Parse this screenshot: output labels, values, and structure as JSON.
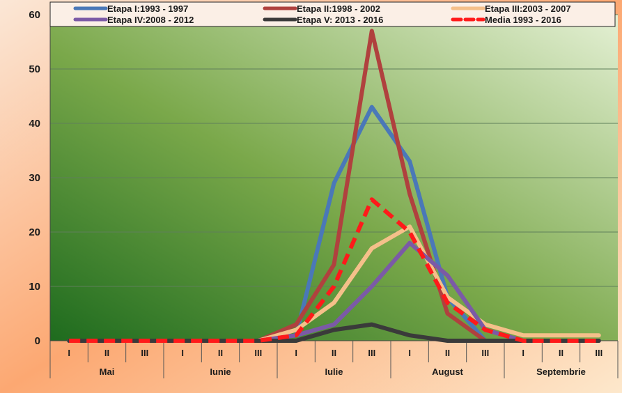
{
  "chart_data": {
    "type": "line",
    "title": "",
    "xlabel": "",
    "ylabel": "",
    "ylim": [
      0,
      60
    ],
    "yticks": [
      0,
      10,
      20,
      30,
      40,
      50,
      60
    ],
    "grid": true,
    "legend_position": "top",
    "sub_categories": [
      "I",
      "II",
      "III",
      "I",
      "II",
      "III",
      "I",
      "II",
      "III",
      "I",
      "II",
      "III",
      "I",
      "II",
      "III"
    ],
    "months": [
      "Mai",
      "Iunie",
      "Iulie",
      "August",
      "Septembrie"
    ],
    "series": [
      {
        "name": "Etapa I:1993 - 1997",
        "color": "#4a78b8",
        "dashed": false,
        "values": [
          0,
          0,
          0,
          0,
          0,
          0,
          1,
          29,
          43,
          33,
          8,
          0,
          0,
          0,
          0
        ]
      },
      {
        "name": "Etapa II:1998 - 2002",
        "color": "#b0413e",
        "dashed": false,
        "values": [
          0,
          0,
          0,
          0,
          0,
          0,
          3,
          14,
          57,
          27,
          5,
          0,
          0,
          0,
          0
        ]
      },
      {
        "name": "Etapa III:2003 - 2007",
        "color": "#f5c08a",
        "dashed": false,
        "values": [
          0,
          0,
          0,
          0,
          0,
          0,
          2,
          7,
          17,
          21,
          8,
          3,
          1,
          1,
          1
        ]
      },
      {
        "name": "Etapa IV:2008 - 2012",
        "color": "#7b5aa6",
        "dashed": false,
        "values": [
          0,
          0,
          0,
          0,
          0,
          0,
          1,
          3,
          10,
          18,
          12,
          2,
          0,
          0,
          0
        ]
      },
      {
        "name": "Etapa V: 2013 - 2016",
        "color": "#3a3a3a",
        "dashed": false,
        "values": [
          0,
          0,
          0,
          0,
          0,
          0,
          0,
          2,
          3,
          1,
          0,
          0,
          0,
          0,
          0
        ]
      },
      {
        "name": "Media 1993 - 2016",
        "color": "#ff1a1a",
        "dashed": true,
        "values": [
          0,
          0,
          0,
          0,
          0,
          0,
          1,
          10,
          26,
          20,
          7,
          2,
          0,
          0,
          0
        ]
      }
    ]
  }
}
